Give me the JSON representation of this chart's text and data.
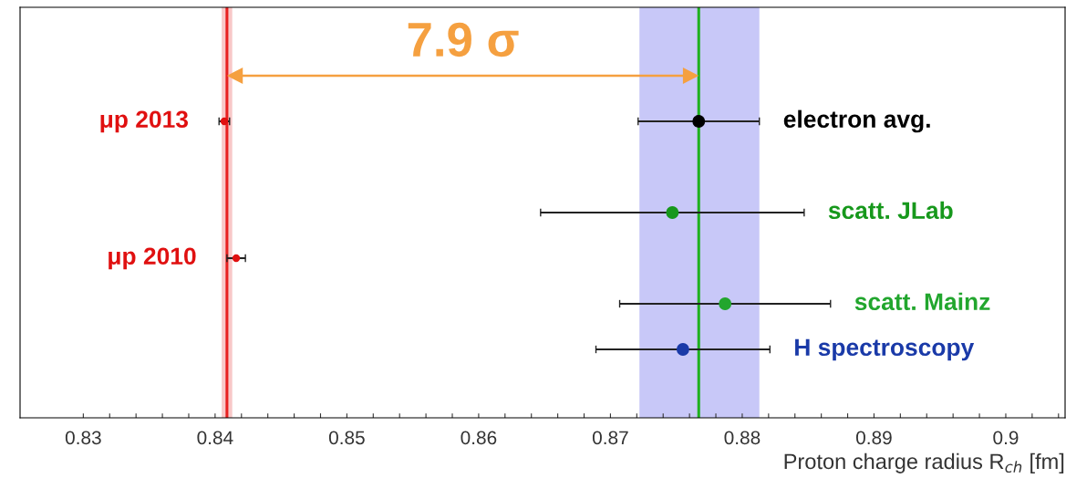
{
  "chart_data": {
    "type": "scatter",
    "orientation": "horizontal",
    "xlabel": "Proton charge radius R$_{ch}$ [fm]",
    "categories": [
      null,
      null,
      null,
      null,
      null,
      null,
      null,
      null,
      null
    ],
    "series": [
      {
        "name": "μp 2013",
        "color": "#e01010",
        "values": [
          null,
          null,
          0.8407,
          null,
          null,
          null,
          null,
          null,
          null
        ],
        "errors": [
          null,
          null,
          0.0004,
          null,
          null,
          null,
          null,
          null,
          null
        ]
      },
      {
        "name": "electron avg.",
        "color": "#000000",
        "values": [
          null,
          null,
          0.8767,
          null,
          null,
          null,
          null,
          null,
          null
        ],
        "errors": [
          null,
          null,
          0.0046,
          null,
          null,
          null,
          null,
          null,
          null
        ]
      },
      {
        "name": "scatt. JLab",
        "color": "#17981c",
        "values": [
          null,
          null,
          null,
          null,
          0.8747,
          null,
          null,
          null,
          null
        ],
        "errors": [
          null,
          null,
          null,
          null,
          0.01,
          null,
          null,
          null,
          null
        ]
      },
      {
        "name": "μp 2010",
        "color": "#e01010",
        "values": [
          null,
          null,
          null,
          null,
          null,
          0.8416,
          null,
          null,
          null
        ],
        "errors": [
          null,
          null,
          null,
          null,
          null,
          0.0007,
          null,
          null,
          null
        ]
      },
      {
        "name": "scatt. Mainz",
        "color": "#22a62e",
        "values": [
          null,
          null,
          null,
          null,
          null,
          null,
          0.8787,
          null,
          null
        ],
        "errors": [
          null,
          null,
          null,
          null,
          null,
          null,
          0.008,
          null,
          null
        ]
      },
      {
        "name": "H spectroscopy",
        "color": "#1a3aa8",
        "values": [
          null,
          null,
          null,
          null,
          null,
          null,
          null,
          0.8755,
          null
        ],
        "errors": [
          null,
          null,
          null,
          null,
          null,
          null,
          null,
          0.0066,
          null
        ]
      }
    ],
    "xlim": [
      0.8252,
      0.9045
    ],
    "xticks": [
      0.83,
      {
        "value": 0.832,
        "label": null
      },
      {
        "value": 0.834,
        "label": null
      },
      {
        "value": 0.836,
        "label": null
      },
      {
        "value": 0.838,
        "label": null
      },
      0.84,
      {
        "value": 0.842,
        "label": null
      },
      {
        "value": 0.844,
        "label": null
      },
      {
        "value": 0.846,
        "label": null
      },
      {
        "value": 0.848,
        "label": null
      },
      0.85,
      {
        "value": 0.852,
        "label": null
      },
      {
        "value": 0.854,
        "label": null
      },
      {
        "value": 0.856,
        "label": null
      },
      {
        "value": 0.858,
        "label": null
      },
      0.86,
      {
        "value": 0.862,
        "label": null
      },
      {
        "value": 0.864,
        "label": null
      },
      {
        "value": 0.866,
        "label": null
      },
      {
        "value": 0.868,
        "label": null
      },
      0.87,
      {
        "value": 0.872,
        "label": null
      },
      {
        "value": 0.874,
        "label": null
      },
      {
        "value": 0.876,
        "label": null
      },
      {
        "value": 0.878,
        "label": null
      },
      0.88,
      {
        "value": 0.882,
        "label": null
      },
      {
        "value": 0.884,
        "label": null
      },
      {
        "value": 0.886,
        "label": null
      },
      {
        "value": 0.888,
        "label": null
      },
      0.89,
      {
        "value": 0.892,
        "label": null
      },
      {
        "value": 0.894,
        "label": null
      },
      {
        "value": 0.896,
        "label": null
      },
      {
        "value": 0.898,
        "label": null
      },
      0.9,
      {
        "value": 0.902,
        "label": null
      },
      {
        "value": 0.904,
        "label": null
      }
    ],
    "tick_labels": "x",
    "bands": [
      {
        "axis": "x",
        "from": 0.8722,
        "to": 0.8813,
        "color": "#c8c8f8"
      },
      {
        "axis": "x",
        "from": 0.8405,
        "to": 0.8413,
        "color": "#f8c8c8"
      }
    ],
    "ref_lines": [
      {
        "axis": "x",
        "value": 0.8409,
        "color": "#e82020"
      },
      {
        "axis": "x",
        "value": 0.8767,
        "color": "#20b020"
      }
    ],
    "annotations": [
      "7.9 σ"
    ],
    "marker": "circle"
  }
}
